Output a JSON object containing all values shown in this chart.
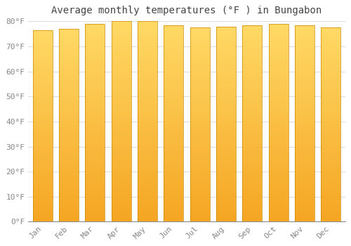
{
  "title": "Average monthly temperatures (°F ) in Bungabon",
  "months": [
    "Jan",
    "Feb",
    "Mar",
    "Apr",
    "May",
    "Jun",
    "Jul",
    "Aug",
    "Sep",
    "Oct",
    "Nov",
    "Dec"
  ],
  "values": [
    76.5,
    77.0,
    79.0,
    80.0,
    80.0,
    78.5,
    77.5,
    78.0,
    78.5,
    79.0,
    78.5,
    77.5
  ],
  "bar_color": "#FFA500",
  "bar_color_light": "#FFD966",
  "bar_edge_color": "#CC8800",
  "background_color": "#FFFFFF",
  "plot_bg_color": "#FFFFFF",
  "grid_color": "#DDDDDD",
  "text_color": "#888888",
  "ylim": [
    0,
    80
  ],
  "yticks": [
    0,
    10,
    20,
    30,
    40,
    50,
    60,
    70,
    80
  ],
  "title_fontsize": 10,
  "tick_fontsize": 8
}
